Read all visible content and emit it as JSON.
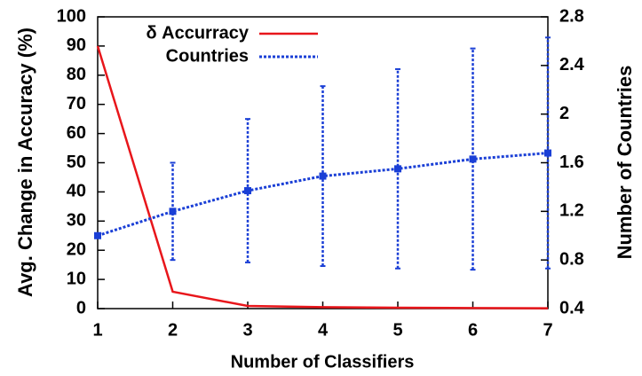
{
  "chart_data": {
    "type": "line",
    "x": [
      1,
      2,
      3,
      4,
      5,
      6,
      7
    ],
    "xlim": [
      1,
      7
    ],
    "xticks": [
      1,
      2,
      3,
      4,
      5,
      6,
      7
    ],
    "ylim": [
      0,
      100
    ],
    "yticks": [
      0,
      10,
      20,
      30,
      40,
      50,
      60,
      70,
      80,
      90,
      100
    ],
    "y2lim": [
      0.4,
      2.8
    ],
    "y2ticks": [
      0.4,
      0.8,
      1.2,
      1.6,
      2,
      2.4,
      2.8
    ],
    "xlabel": "Number of Classifiers",
    "ylabel": "Avg. Change in Accuracy (%)",
    "y2label": "Number of Countries",
    "legend": "upper left",
    "series": [
      {
        "name": "δ Accurracy",
        "color": "#e8161b",
        "values": [
          90,
          5.8,
          0.9,
          0.5,
          0.3,
          0.2,
          0.1
        ]
      },
      {
        "name": "Countries",
        "color": "#1a3fd6",
        "axis": "y2",
        "values": [
          1.0,
          1.2,
          1.37,
          1.49,
          1.55,
          1.63,
          1.68
        ],
        "errors": [
          0,
          0.4,
          0.59,
          0.74,
          0.82,
          0.91,
          0.95
        ]
      }
    ]
  }
}
